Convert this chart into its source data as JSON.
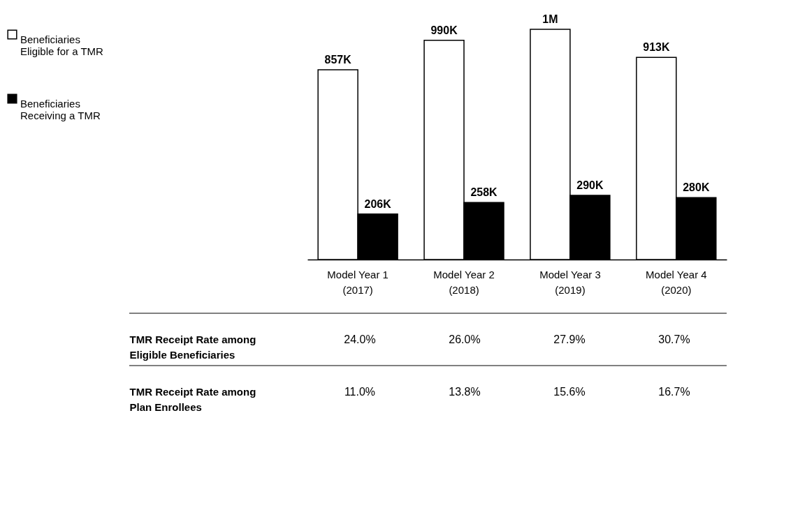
{
  "chart_data": {
    "type": "bar",
    "categories": [
      "Model Year 1\n(2017)",
      "Model Year 2\n(2018)",
      "Model Year 3\n(2019)",
      "Model Year 4\n(2020)"
    ],
    "legend": "left",
    "series": [
      {
        "name": "Beneficiaries\nEligible for a TMR",
        "color": "#ffffff",
        "values": [
          857000,
          990000,
          1040000,
          913000
        ],
        "value_labels": [
          "857K",
          "990K",
          "1M",
          "913K"
        ]
      },
      {
        "name": "Beneficiaries\nReceiving a TMR",
        "color": "#000000",
        "values": [
          206000,
          258000,
          290000,
          280000
        ],
        "value_labels": [
          "206K",
          "258K",
          "290K",
          "280K"
        ]
      }
    ],
    "annotations": [
      "TMR Receipt Rate among\nEligible Beneficiaries",
      "24.0%",
      "26.0%",
      "27.9%",
      "30.7%",
      "TMR Receipt Rate among\nPlan Enrollees",
      "11.0%",
      "13.8%",
      "15.6%",
      "16.7%"
    ]
  }
}
